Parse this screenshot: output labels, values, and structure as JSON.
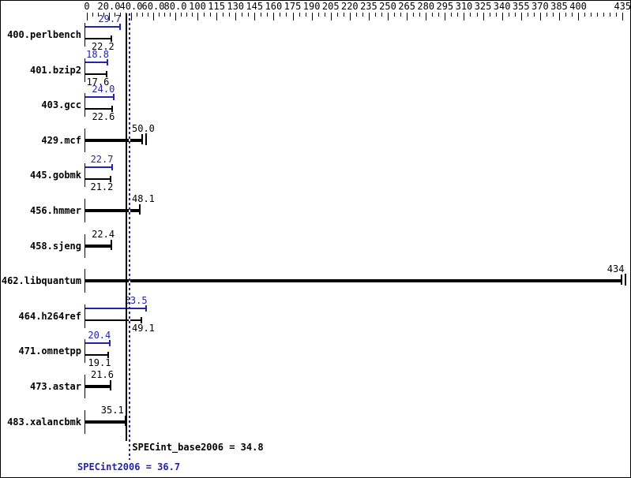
{
  "chart_data": {
    "type": "bar",
    "orientation": "horizontal",
    "title": "",
    "xlabel": "",
    "ylabel": "",
    "axis": {
      "position": "top",
      "min": 0,
      "max": 435,
      "scale_note": "piecewise linear: 0-100 labeled every 20, 100-400 labeled every 15, end label 435",
      "major_tick_values": [
        0,
        20,
        40,
        60,
        80,
        100,
        115,
        130,
        145,
        160,
        175,
        190,
        205,
        220,
        235,
        250,
        265,
        280,
        295,
        310,
        325,
        340,
        355,
        370,
        385,
        400,
        435
      ],
      "major_tick_labels": [
        "0",
        "20.0",
        "40.0",
        "60.0",
        "80.0",
        "100",
        "115",
        "130",
        "145",
        "160",
        "175",
        "190",
        "205",
        "220",
        "235",
        "250",
        "265",
        "280",
        "295",
        "310",
        "325",
        "340",
        "355",
        "370",
        "385",
        "400",
        "435"
      ],
      "minor_tick_step": 5
    },
    "benchmarks": [
      {
        "name": "400.perlbench",
        "peak": 29.7,
        "peak_text": "29.7",
        "base": 22.2,
        "base_text": "22.2"
      },
      {
        "name": "401.bzip2",
        "peak": 18.8,
        "peak_text": "18.8",
        "base": 17.6,
        "base_text": "17.6"
      },
      {
        "name": "403.gcc",
        "peak": 24.0,
        "peak_text": "24.0",
        "base": 22.6,
        "base_text": "22.6"
      },
      {
        "name": "429.mcf",
        "base": 50.0,
        "base_text": "50.0",
        "double_end_marker": true
      },
      {
        "name": "445.gobmk",
        "peak": 22.7,
        "peak_text": "22.7",
        "base": 21.2,
        "base_text": "21.2"
      },
      {
        "name": "456.hmmer",
        "base": 48.1,
        "base_text": "48.1"
      },
      {
        "name": "458.sjeng",
        "base": 22.4,
        "base_text": "22.4"
      },
      {
        "name": "462.libquantum",
        "base": 434,
        "base_text": "434",
        "double_end_marker": true
      },
      {
        "name": "464.h264ref",
        "peak": 53.5,
        "peak_text": "53.5",
        "base": 49.1,
        "base_text": "49.1"
      },
      {
        "name": "471.omnetpp",
        "peak": 20.4,
        "peak_text": "20.4",
        "base": 19.1,
        "base_text": "19.1"
      },
      {
        "name": "473.astar",
        "base": 21.6,
        "base_text": "21.6"
      },
      {
        "name": "483.xalancbmk",
        "base": 35.1,
        "base_text": "35.1"
      }
    ],
    "means": {
      "base_value": 34.8,
      "base_text": "SPECint_base2006 = 34.8",
      "peak_value": 36.7,
      "peak_text": "SPECint2006 = 36.7"
    },
    "colors": {
      "base": "#000000",
      "peak": "#2323ad",
      "background": "#ffffff"
    }
  }
}
